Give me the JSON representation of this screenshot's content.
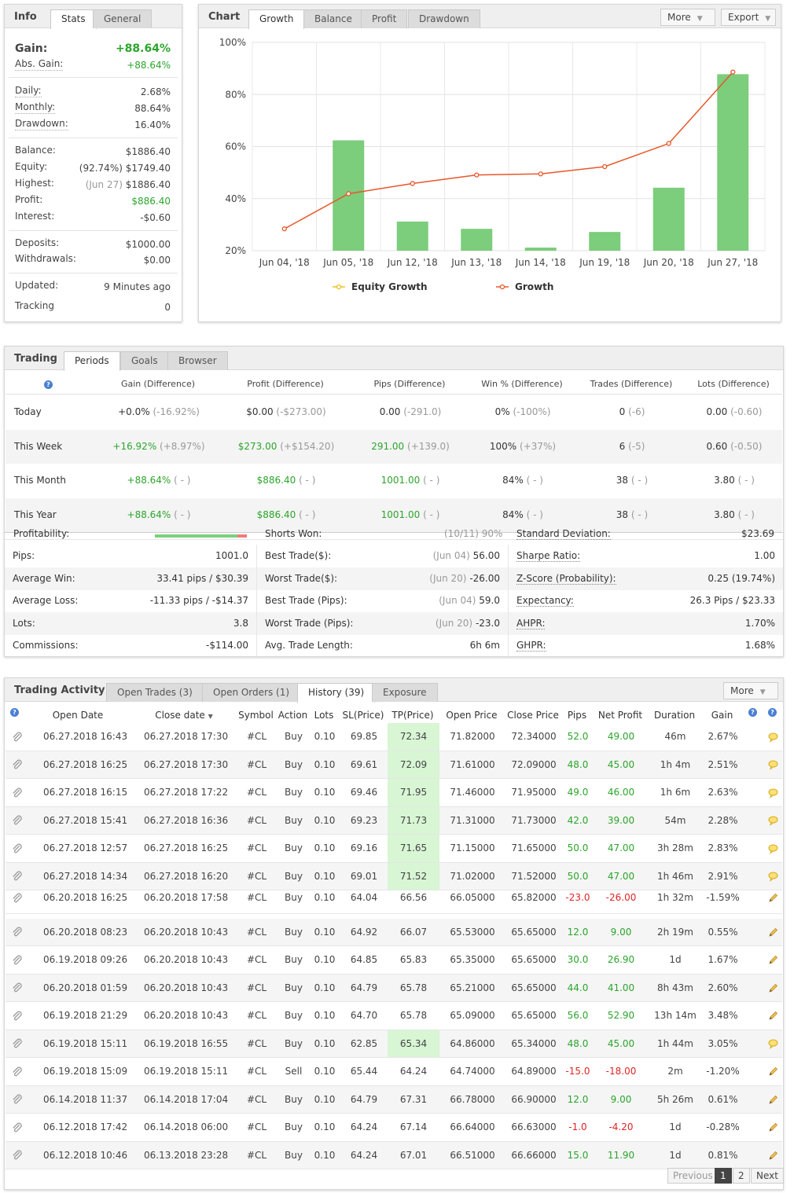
{
  "info": {
    "tabs": [
      "Info",
      "Stats",
      "General"
    ],
    "gain_label": "Gain:",
    "gain_value": "+88.64%",
    "abs_gain_label": "Abs. Gain:",
    "abs_gain_value": "+88.64%",
    "daily_label": "Daily:",
    "daily_value": "2.68%",
    "monthly_label": "Monthly:",
    "monthly_value": "88.64%",
    "drawdown_label": "Drawdown:",
    "drawdown_value": "16.40%",
    "balance_label": "Balance:",
    "balance_value": "$1886.40",
    "equity_label": "Equity:",
    "equity_pct": "(92.74%)",
    "equity_value": "$1749.40",
    "highest_label": "Highest:",
    "highest_date": "(Jun 27)",
    "highest_value": "$1886.40",
    "profit_label": "Profit:",
    "profit_value": "$886.40",
    "interest_label": "Interest:",
    "interest_value": "-$0.60",
    "deposits_label": "Deposits:",
    "deposits_value": "$1000.00",
    "withdrawals_label": "Withdrawals:",
    "withdrawals_value": "$0.00",
    "updated_label": "Updated:",
    "updated_value": "9 Minutes ago",
    "tracking_label": "Tracking",
    "tracking_value": "0"
  },
  "chart_panel": {
    "title": "Chart",
    "tabs": [
      "Growth",
      "Balance",
      "Profit",
      "Drawdown"
    ],
    "more_label": "More",
    "export_label": "Export"
  },
  "chart_data": {
    "type": "bar",
    "title": "Growth",
    "categories": [
      "Jun 04, '18",
      "Jun 05, '18",
      "Jun 12, '18",
      "Jun 13, '18",
      "Jun 14, '18",
      "Jun 19, '18",
      "Jun 20, '18",
      "Jun 27, '18"
    ],
    "series": [
      {
        "name": "Equity Growth",
        "kind": "bar",
        "color": "#7ccd7c",
        "values": [
          null,
          62.4,
          31.2,
          28.4,
          21.2,
          27.2,
          44.2,
          87.8
        ]
      },
      {
        "name": "Growth",
        "kind": "line",
        "color": "#e8572a",
        "values": [
          28.4,
          41.9,
          45.8,
          49.1,
          49.5,
          52.3,
          61.2,
          88.64
        ]
      }
    ],
    "yticks": [
      "20%",
      "40%",
      "60%",
      "80%",
      "100%"
    ],
    "ylim": [
      20,
      100
    ],
    "legend_position": "bottom",
    "legend_marker_colors": [
      "#f0c020",
      "#e8572a"
    ]
  },
  "trading": {
    "title": "Trading",
    "tabs": [
      "Periods",
      "Goals",
      "Browser"
    ],
    "headers": [
      "Gain (Difference)",
      "Profit (Difference)",
      "Pips (Difference)",
      "Win % (Difference)",
      "Trades (Difference)",
      "Lots (Difference)"
    ],
    "rows": [
      {
        "period": "Today",
        "gain": "+0.0%",
        "gain_diff": "(-16.92%)",
        "profit": "$0.00",
        "profit_diff": "(-$273.00)",
        "pips": "0.00",
        "pips_diff": "(-291.0)",
        "win": "0%",
        "win_diff": "(-100%)",
        "trades": "0",
        "trades_diff": "(-6)",
        "lots": "0.00",
        "lots_diff": "(-0.60)"
      },
      {
        "period": "This Week",
        "gain": "+16.92%",
        "gain_diff": "(+8.97%)",
        "profit": "$273.00",
        "profit_diff": "(+$154.20)",
        "pips": "291.00",
        "pips_diff": "(+139.0)",
        "win": "100%",
        "win_diff": "(+37%)",
        "trades": "6",
        "trades_diff": "(-5)",
        "lots": "0.60",
        "lots_diff": "(-0.50)"
      },
      {
        "period": "This Month",
        "gain": "+88.64%",
        "gain_diff": "( - )",
        "profit": "$886.40",
        "profit_diff": "( - )",
        "pips": "1001.00",
        "pips_diff": "( - )",
        "win": "84%",
        "win_diff": "( - )",
        "trades": "38",
        "trades_diff": "( - )",
        "lots": "3.80",
        "lots_diff": "( - )"
      },
      {
        "period": "This Year",
        "gain": "+88.64%",
        "gain_diff": "( - )",
        "profit": "$886.40",
        "profit_diff": "( - )",
        "pips": "1001.00",
        "pips_diff": "( - )",
        "win": "84%",
        "win_diff": "( - )",
        "trades": "38",
        "trades_diff": "( - )",
        "lots": "3.80",
        "lots_diff": "( - )"
      }
    ]
  },
  "stats": {
    "partial_labels": [
      "Profitability:",
      "Shorts Won:",
      "Standard Deviation:"
    ],
    "partial_values": [
      "(10/11) 90%",
      "$23.69"
    ],
    "profitability_fraction": 0.9,
    "col1": [
      {
        "label": "Pips:",
        "value": "1001.0"
      },
      {
        "label": "Average Win:",
        "value": "33.41 pips / $30.39"
      },
      {
        "label": "Average Loss:",
        "value": "-11.33 pips / -$14.37"
      },
      {
        "label": "Lots:",
        "value": "3.8"
      },
      {
        "label": "Commissions:",
        "value": "-$114.00"
      }
    ],
    "col2": [
      {
        "label": "Best Trade($):",
        "date": "(Jun 04)",
        "value": "56.00"
      },
      {
        "label": "Worst Trade($):",
        "date": "(Jun 20)",
        "value": "-26.00"
      },
      {
        "label": "Best Trade (Pips):",
        "date": "(Jun 04)",
        "value": "59.0"
      },
      {
        "label": "Worst Trade (Pips):",
        "date": "(Jun 20)",
        "value": "-23.0"
      },
      {
        "label": "Avg. Trade Length:",
        "date": "",
        "value": "6h 6m"
      }
    ],
    "col3": [
      {
        "label": "Sharpe Ratio:",
        "value": "1.00"
      },
      {
        "label": "Z-Score (Probability):",
        "value": "0.25 (19.74%)"
      },
      {
        "label": "Expectancy:",
        "value": "26.3 Pips / $23.33"
      },
      {
        "label": "AHPR:",
        "value": "1.70%"
      },
      {
        "label": "GHPR:",
        "value": "1.68%"
      }
    ]
  },
  "activity": {
    "title": "Trading Activity",
    "tabs": [
      "Open Trades (3)",
      "Open Orders (1)",
      "History (39)",
      "Exposure"
    ],
    "more_label": "More",
    "headers": [
      "Open Date",
      "Close date",
      "Symbol",
      "Action",
      "Lots",
      "SL(Price)",
      "TP(Price)",
      "Open Price",
      "Close Price",
      "Pips",
      "Net Profit",
      "Duration",
      "Gain"
    ],
    "help_icon_text": "?",
    "rows": [
      {
        "open": "06.27.2018 16:43",
        "close": "06.27.2018 17:30",
        "sym": "#CL",
        "act": "Buy",
        "lots": "0.10",
        "sl": "69.85",
        "tp": "72.34",
        "op": "71.82000",
        "cp": "72.34000",
        "pips": "52.0",
        "np": "49.00",
        "dur": "46m",
        "gain": "2.67%",
        "tphit": true,
        "neg": false,
        "icon": "bulb"
      },
      {
        "open": "06.27.2018 16:25",
        "close": "06.27.2018 17:30",
        "sym": "#CL",
        "act": "Buy",
        "lots": "0.10",
        "sl": "69.61",
        "tp": "72.09",
        "op": "71.61000",
        "cp": "72.09000",
        "pips": "48.0",
        "np": "45.00",
        "dur": "1h 4m",
        "gain": "2.51%",
        "tphit": true,
        "neg": false,
        "icon": "bulb"
      },
      {
        "open": "06.27.2018 16:15",
        "close": "06.27.2018 17:22",
        "sym": "#CL",
        "act": "Buy",
        "lots": "0.10",
        "sl": "69.46",
        "tp": "71.95",
        "op": "71.46000",
        "cp": "71.95000",
        "pips": "49.0",
        "np": "46.00",
        "dur": "1h 6m",
        "gain": "2.63%",
        "tphit": true,
        "neg": false,
        "icon": "bulb"
      },
      {
        "open": "06.27.2018 15:41",
        "close": "06.27.2018 16:36",
        "sym": "#CL",
        "act": "Buy",
        "lots": "0.10",
        "sl": "69.23",
        "tp": "71.73",
        "op": "71.31000",
        "cp": "71.73000",
        "pips": "42.0",
        "np": "39.00",
        "dur": "54m",
        "gain": "2.28%",
        "tphit": true,
        "neg": false,
        "icon": "bulb"
      },
      {
        "open": "06.27.2018 12:57",
        "close": "06.27.2018 16:25",
        "sym": "#CL",
        "act": "Buy",
        "lots": "0.10",
        "sl": "69.16",
        "tp": "71.65",
        "op": "71.15000",
        "cp": "71.65000",
        "pips": "50.0",
        "np": "47.00",
        "dur": "3h 28m",
        "gain": "2.83%",
        "tphit": true,
        "neg": false,
        "icon": "bulb"
      },
      {
        "open": "06.27.2018 14:34",
        "close": "06.27.2018 16:20",
        "sym": "#CL",
        "act": "Buy",
        "lots": "0.10",
        "sl": "69.01",
        "tp": "71.52",
        "op": "71.02000",
        "cp": "71.52000",
        "pips": "50.0",
        "np": "47.00",
        "dur": "1h 46m",
        "gain": "2.91%",
        "tphit": true,
        "neg": false,
        "icon": "bulb"
      },
      {
        "open": "06.20.2018 16:25",
        "close": "06.20.2018 17:58",
        "sym": "#CL",
        "act": "Buy",
        "lots": "0.10",
        "sl": "64.04",
        "tp": "66.56",
        "op": "66.05000",
        "cp": "65.82000",
        "pips": "-23.0",
        "np": "-26.00",
        "dur": "1h 32m",
        "gain": "-1.59%",
        "tphit": false,
        "neg": true,
        "icon": "pencil",
        "clipped": true
      },
      {
        "open": "06.20.2018 08:23",
        "close": "06.20.2018 10:43",
        "sym": "#CL",
        "act": "Buy",
        "lots": "0.10",
        "sl": "64.92",
        "tp": "66.07",
        "op": "65.53000",
        "cp": "65.65000",
        "pips": "12.0",
        "np": "9.00",
        "dur": "2h 19m",
        "gain": "0.55%",
        "tphit": false,
        "neg": false,
        "icon": "pencil"
      },
      {
        "open": "06.19.2018 09:26",
        "close": "06.20.2018 10:43",
        "sym": "#CL",
        "act": "Buy",
        "lots": "0.10",
        "sl": "64.85",
        "tp": "65.83",
        "op": "65.35000",
        "cp": "65.65000",
        "pips": "30.0",
        "np": "26.90",
        "dur": "1d",
        "gain": "1.67%",
        "tphit": false,
        "neg": false,
        "icon": "pencil"
      },
      {
        "open": "06.20.2018 01:59",
        "close": "06.20.2018 10:43",
        "sym": "#CL",
        "act": "Buy",
        "lots": "0.10",
        "sl": "64.79",
        "tp": "65.78",
        "op": "65.21000",
        "cp": "65.65000",
        "pips": "44.0",
        "np": "41.00",
        "dur": "8h 43m",
        "gain": "2.60%",
        "tphit": false,
        "neg": false,
        "icon": "pencil"
      },
      {
        "open": "06.19.2018 21:29",
        "close": "06.20.2018 10:43",
        "sym": "#CL",
        "act": "Buy",
        "lots": "0.10",
        "sl": "64.70",
        "tp": "65.78",
        "op": "65.09000",
        "cp": "65.65000",
        "pips": "56.0",
        "np": "52.90",
        "dur": "13h 14m",
        "gain": "3.48%",
        "tphit": false,
        "neg": false,
        "icon": "pencil"
      },
      {
        "open": "06.19.2018 15:11",
        "close": "06.19.2018 16:55",
        "sym": "#CL",
        "act": "Buy",
        "lots": "0.10",
        "sl": "62.85",
        "tp": "65.34",
        "op": "64.86000",
        "cp": "65.34000",
        "pips": "48.0",
        "np": "45.00",
        "dur": "1h 44m",
        "gain": "3.05%",
        "tphit": true,
        "neg": false,
        "icon": "bulb"
      },
      {
        "open": "06.19.2018 15:09",
        "close": "06.19.2018 15:11",
        "sym": "#CL",
        "act": "Sell",
        "lots": "0.10",
        "sl": "65.44",
        "tp": "64.24",
        "op": "64.74000",
        "cp": "64.89000",
        "pips": "-15.0",
        "np": "-18.00",
        "dur": "2m",
        "gain": "-1.20%",
        "tphit": false,
        "neg": true,
        "icon": "pencil"
      },
      {
        "open": "06.14.2018 11:37",
        "close": "06.14.2018 17:04",
        "sym": "#CL",
        "act": "Buy",
        "lots": "0.10",
        "sl": "64.79",
        "tp": "67.31",
        "op": "66.78000",
        "cp": "66.90000",
        "pips": "12.0",
        "np": "9.00",
        "dur": "5h 26m",
        "gain": "0.61%",
        "tphit": false,
        "neg": false,
        "icon": "pencil"
      },
      {
        "open": "06.12.2018 17:42",
        "close": "06.14.2018 06:00",
        "sym": "#CL",
        "act": "Buy",
        "lots": "0.10",
        "sl": "64.24",
        "tp": "67.14",
        "op": "66.64000",
        "cp": "66.63000",
        "pips": "-1.0",
        "np": "-4.20",
        "dur": "1d",
        "gain": "-0.28%",
        "tphit": false,
        "neg": true,
        "icon": "pencil"
      },
      {
        "open": "06.12.2018 10:46",
        "close": "06.13.2018 23:28",
        "sym": "#CL",
        "act": "Buy",
        "lots": "0.10",
        "sl": "64.24",
        "tp": "67.01",
        "op": "66.51000",
        "cp": "66.66000",
        "pips": "15.0",
        "np": "11.90",
        "dur": "1d",
        "gain": "0.81%",
        "tphit": false,
        "neg": false,
        "icon": "pencil"
      }
    ],
    "pagination": {
      "prev": "Previous",
      "pages": [
        "1",
        "2"
      ],
      "next": "Next"
    }
  }
}
